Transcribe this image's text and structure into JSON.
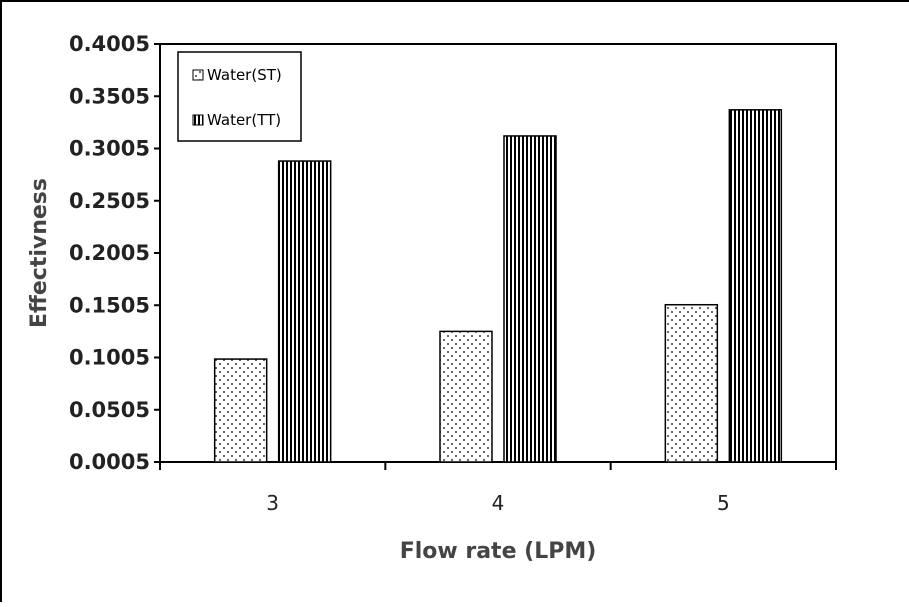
{
  "chart_data": {
    "type": "bar",
    "title": "",
    "xlabel": "Flow rate (LPM)",
    "ylabel": "Effectivness",
    "categories": [
      "3",
      "4",
      "5"
    ],
    "series": [
      {
        "name": "Water(ST)",
        "values": [
          0.099,
          0.1255,
          0.151
        ],
        "pattern": "dots"
      },
      {
        "name": "Water(TT)",
        "values": [
          0.2885,
          0.3125,
          0.3375
        ],
        "pattern": "vertical-lines"
      }
    ],
    "ylim": [
      0.0005,
      0.4005
    ],
    "yticks": [
      "0.0005",
      "0.0505",
      "0.1005",
      "0.1505",
      "0.2005",
      "0.2505",
      "0.3005",
      "0.3505",
      "0.4005"
    ],
    "legend_position": "top-left",
    "grid": false
  }
}
